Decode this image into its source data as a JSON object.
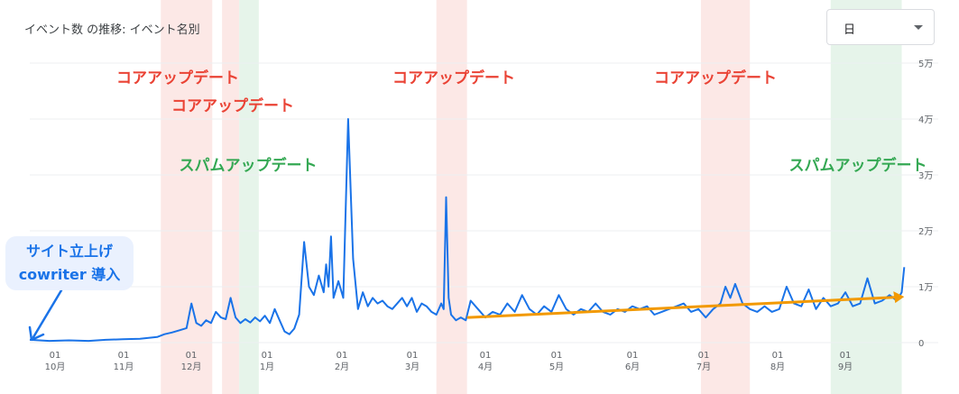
{
  "card": {
    "title": "イベント数 の推移: イベント名別"
  },
  "granularity": {
    "selected": "日"
  },
  "callout": {
    "line1": "サイト立上げ",
    "line2": "cowriter 導入"
  },
  "annotation_labels": [
    {
      "text": "コアアップデート",
      "kind": "core"
    },
    {
      "text": "コアアップデート",
      "kind": "core"
    },
    {
      "text": "スパムアップデート",
      "kind": "spam"
    },
    {
      "text": "コアアップデート",
      "kind": "core"
    },
    {
      "text": "コアアップデート",
      "kind": "core"
    },
    {
      "text": "スパムアップデート",
      "kind": "spam"
    }
  ],
  "colors": {
    "line": "#1a73e8",
    "trend": "#f29900",
    "core_band": "#fce8e6",
    "spam_band": "#e6f4ea",
    "core_text": "#ea4335",
    "spam_text": "#34a853",
    "grid": "#eceff1"
  },
  "chart_data": {
    "type": "line",
    "y_ticks": [
      "5万",
      "4万",
      "3万",
      "2万",
      "1万",
      "0"
    ],
    "ylim": [
      0,
      50000
    ],
    "x_ticks": [
      {
        "day": "01",
        "month": "10月"
      },
      {
        "day": "01",
        "month": "11月"
      },
      {
        "day": "01",
        "month": "12月"
      },
      {
        "day": "01",
        "month": "1月"
      },
      {
        "day": "01",
        "month": "2月"
      },
      {
        "day": "01",
        "month": "3月"
      },
      {
        "day": "01",
        "month": "4月"
      },
      {
        "day": "01",
        "month": "5月"
      },
      {
        "day": "01",
        "month": "6月"
      },
      {
        "day": "01",
        "month": "7月"
      },
      {
        "day": "01",
        "month": "8月"
      },
      {
        "day": "01",
        "month": "9月"
      }
    ],
    "bands": [
      {
        "kind": "core",
        "start": 53.5,
        "end": 74.5
      },
      {
        "kind": "core",
        "start": 78.5,
        "end": 85.5
      },
      {
        "kind": "spam",
        "start": 85.5,
        "end": 93.5
      },
      {
        "kind": "core",
        "start": 166,
        "end": 178.5
      },
      {
        "kind": "core",
        "start": 274,
        "end": 294
      },
      {
        "kind": "spam",
        "start": 327,
        "end": 356
      }
    ],
    "trend": {
      "x": [
        179,
        357
      ],
      "y": [
        4500,
        8200
      ]
    },
    "series": [
      {
        "x": [
          0,
          8,
          16,
          24,
          31,
          38,
          45,
          52,
          55,
          58,
          61,
          64,
          66,
          68,
          70,
          72,
          74,
          76,
          78,
          80,
          82,
          84,
          86,
          88,
          90,
          92,
          94,
          96,
          98,
          100,
          102,
          104,
          106,
          108,
          110,
          112,
          114,
          116,
          118,
          120,
          121,
          122,
          123,
          124,
          126,
          128,
          130,
          132,
          134,
          136,
          138,
          140,
          142,
          144,
          146,
          148,
          150,
          152,
          154,
          156,
          158,
          160,
          162,
          164,
          166,
          168,
          169,
          170,
          171,
          172,
          174,
          176,
          178,
          180,
          183,
          186,
          189,
          192,
          195,
          198,
          201,
          204,
          207,
          210,
          213,
          216,
          219,
          222,
          225,
          228,
          231,
          234,
          237,
          240,
          243,
          246,
          249,
          252,
          255,
          258,
          261,
          264,
          267,
          270,
          273,
          276,
          279,
          282,
          284,
          286,
          288,
          291,
          294,
          297,
          300,
          303,
          306,
          309,
          312,
          315,
          318,
          321,
          324,
          327,
          330,
          333,
          336,
          339,
          342,
          345,
          348,
          351,
          354,
          356,
          357
        ],
        "y": [
          500,
          300,
          400,
          300,
          500,
          600,
          700,
          1000,
          1500,
          1800,
          2200,
          2600,
          7000,
          3500,
          3000,
          4000,
          3500,
          5500,
          4500,
          4200,
          8000,
          4500,
          3500,
          4200,
          3600,
          4500,
          3800,
          4800,
          3500,
          6000,
          4000,
          2000,
          1500,
          2500,
          5000,
          18000,
          10000,
          8500,
          12000,
          9000,
          14000,
          10000,
          19000,
          8000,
          11000,
          8000,
          40000,
          15000,
          6000,
          9000,
          6500,
          8000,
          7000,
          7500,
          6500,
          6000,
          7000,
          8000,
          6500,
          8000,
          5500,
          7000,
          6500,
          5500,
          5000,
          7000,
          6000,
          26000,
          8000,
          5000,
          4000,
          4500,
          4000,
          7500,
          6000,
          4500,
          5500,
          5000,
          7000,
          5500,
          8500,
          6000,
          5000,
          6500,
          5500,
          8500,
          6000,
          5000,
          6000,
          5500,
          7000,
          5500,
          5000,
          6000,
          5500,
          6500,
          6000,
          6500,
          5000,
          5500,
          6000,
          6500,
          7000,
          5500,
          6000,
          4500,
          6000,
          7000,
          10000,
          8000,
          10500,
          7000,
          6000,
          5500,
          6500,
          5500,
          6000,
          10000,
          7000,
          6500,
          9500,
          6000,
          8000,
          6500,
          7000,
          9000,
          6500,
          7000,
          11500,
          7000,
          7500,
          8500,
          7500,
          9000,
          13500
        ]
      }
    ]
  }
}
